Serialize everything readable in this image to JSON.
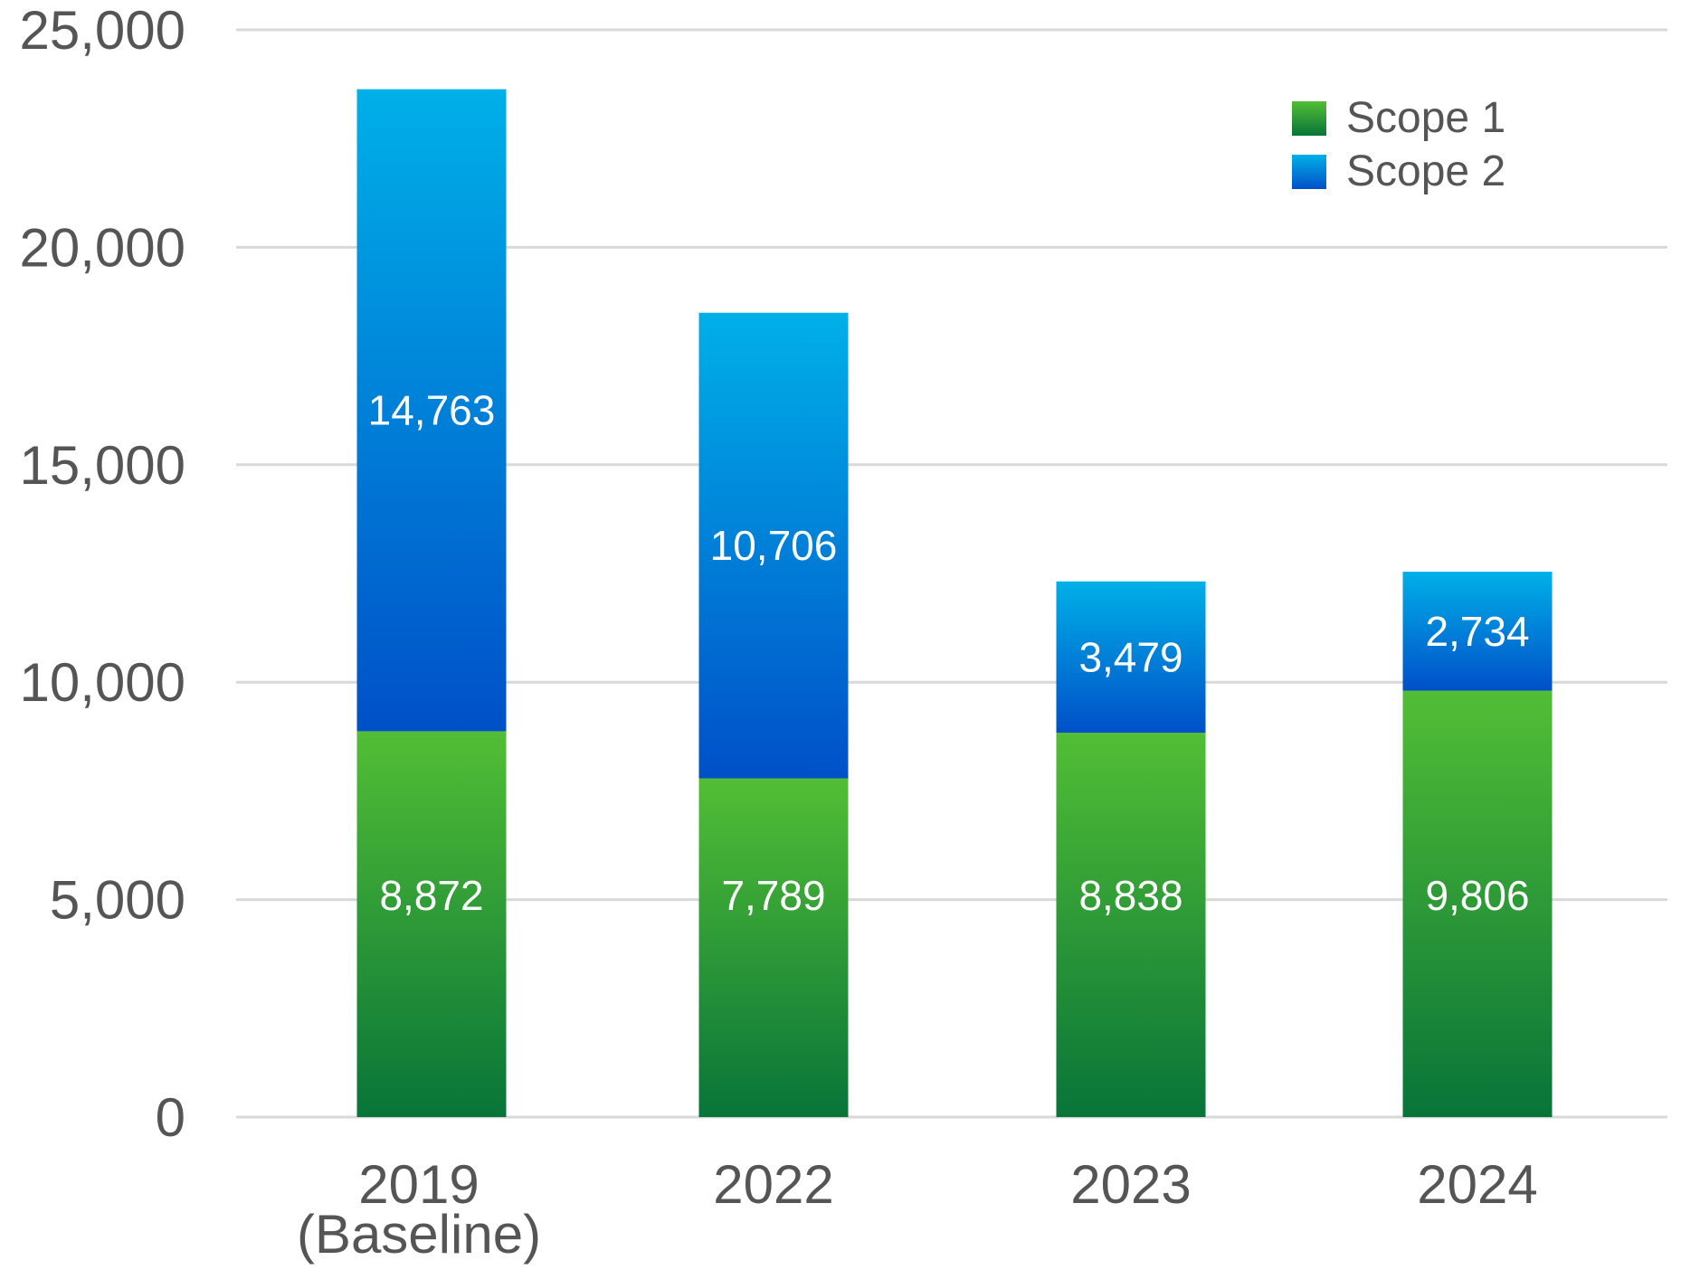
{
  "chart_data": {
    "type": "bar",
    "stacked": true,
    "title": "",
    "xlabel": "",
    "ylabel": "",
    "categories": [
      [
        "2019",
        "(Baseline)"
      ],
      [
        "2022"
      ],
      [
        "2023"
      ],
      [
        "2024"
      ]
    ],
    "series": [
      {
        "name": "Scope 1",
        "values": [
          8872,
          7789,
          8838,
          9806
        ],
        "labels": [
          "8,872",
          "7,789",
          "8,838",
          "9,806"
        ],
        "color_top": "#52be35",
        "color_bottom": "#087439"
      },
      {
        "name": "Scope 2",
        "values": [
          14763,
          10706,
          3479,
          2734
        ],
        "labels": [
          "14,763",
          "10,706",
          "3,479",
          "2,734"
        ],
        "color_top": "#00b0e8",
        "color_bottom": "#0050c8"
      }
    ],
    "ylim": [
      0,
      25000
    ],
    "yticks": [
      0,
      5000,
      10000,
      15000,
      20000,
      25000
    ],
    "ytick_labels": [
      "0",
      "5,000",
      "10,000",
      "15,000",
      "20,000",
      "25,000"
    ],
    "grid": true,
    "legend_position": "top-right"
  }
}
